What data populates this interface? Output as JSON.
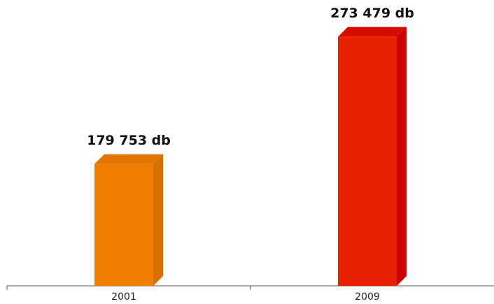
{
  "chart_data": {
    "type": "bar3d",
    "categories": [
      "2001",
      "2009"
    ],
    "values": [
      179753,
      273479
    ],
    "value_labels": [
      "179 753 db",
      "273 479 db"
    ],
    "colors": [
      "#ee7d00",
      "#e62200"
    ],
    "side_colors": [
      "#d66f00",
      "#cc0000"
    ],
    "top_colors": [
      "#e27500",
      "#d60c00"
    ],
    "ylim": [
      90000,
      280000
    ]
  }
}
